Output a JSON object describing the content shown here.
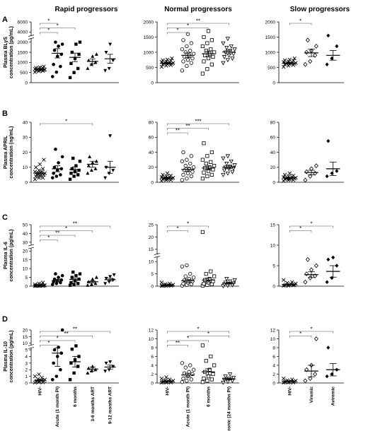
{
  "columns": [
    "Rapid progressors",
    "Normal progressors",
    "Slow progressors"
  ],
  "row_letters": [
    "A",
    "B",
    "C",
    "D"
  ],
  "ylabels": [
    [
      "Plasma BLyS",
      "concentration (pg/mL)"
    ],
    [
      "Plasma APRIL",
      "concentration (ng/mL)"
    ],
    [
      "Plasma IL-6",
      "concentration (pg/mL)"
    ],
    [
      "Plasma IL-10",
      "concentration (pg/mL)"
    ]
  ],
  "xcategories": {
    "rapid": [
      "HIV-",
      "Acute (1 month PI)",
      "6 months",
      "3-6 months ART",
      "9-12 months ART"
    ],
    "normal": [
      "HIV-",
      "Acute (1 month PI)",
      "6 months",
      "Chronic (24 months PI)"
    ],
    "slow": [
      "HIV-",
      "Viremic",
      "Aviremic"
    ]
  },
  "chart_data": [
    {
      "type": "scatter",
      "row": 0,
      "col": 0,
      "ticks": [
        0,
        500,
        1000,
        1500,
        2000,
        4000,
        6000
      ],
      "tick_labels": [
        "0",
        "500",
        "1000",
        "1500",
        "2000",
        "4000",
        "6000"
      ],
      "break": {
        "below": 2000,
        "gap": [
          2000,
          4000
        ]
      },
      "categories": [
        "HIV-",
        "Acute (1 month PI)",
        "6 months",
        "3-6 months ART",
        "9-12 months ART"
      ],
      "points": [
        [
          520,
          560,
          580,
          600,
          610,
          620,
          630,
          640,
          650,
          660,
          670,
          680,
          700,
          720,
          740,
          760,
          800
        ],
        [
          300,
          520,
          800,
          900,
          1300,
          1400,
          1600,
          1800,
          1900,
          2000
        ],
        [
          250,
          500,
          700,
          950,
          1200,
          1400,
          1500,
          1900,
          2000
        ],
        [
          700,
          900,
          1000,
          1100,
          1300,
          1400
        ],
        [
          600,
          700,
          1100,
          1500,
          1900
        ]
      ],
      "means": [
        660,
        1450,
        1250,
        1050,
        1180
      ],
      "sems": [
        25,
        230,
        210,
        120,
        220
      ],
      "sig": [
        {
          "from": 0,
          "to": 1,
          "label": "*"
        },
        {
          "from": 0,
          "to": 2,
          "label": "*"
        },
        {
          "from": 0,
          "to": 1,
          "label": "*"
        }
      ]
    },
    {
      "type": "scatter",
      "row": 0,
      "col": 1,
      "ticks": [
        0,
        500,
        1000,
        1500,
        2000
      ],
      "tick_labels": [
        "0",
        "500",
        "1000",
        "1500",
        "2000"
      ],
      "categories": [
        "HIV-",
        "Acute (1 month PI)",
        "6 months",
        "Chronic (24 months PI)"
      ],
      "points": [
        [
          520,
          560,
          580,
          600,
          610,
          620,
          630,
          640,
          650,
          660,
          670,
          680,
          700,
          720,
          740,
          760,
          800
        ],
        [
          400,
          550,
          650,
          700,
          750,
          800,
          850,
          900,
          950,
          1000,
          1050,
          1100,
          1200,
          1300,
          1400,
          1600
        ],
        [
          300,
          450,
          600,
          700,
          800,
          850,
          900,
          950,
          1000,
          1050,
          1100,
          1200,
          1300,
          1400,
          1500,
          1700
        ],
        [
          650,
          750,
          800,
          850,
          900,
          950,
          1000,
          1050,
          1100,
          1150,
          1200,
          1300,
          1450
        ]
      ],
      "means": [
        640,
        900,
        950,
        1010
      ],
      "sems": [
        25,
        80,
        90,
        60
      ],
      "sig": [
        {
          "from": 0,
          "to": 1,
          "label": "*"
        },
        {
          "from": 0,
          "to": 2,
          "label": "*"
        },
        {
          "from": 0,
          "to": 3,
          "label": "**"
        }
      ]
    },
    {
      "type": "scatter",
      "row": 0,
      "col": 2,
      "ticks": [
        0,
        500,
        1000,
        1500,
        2000
      ],
      "tick_labels": [
        "0",
        "500",
        "1000",
        "1500",
        "2000"
      ],
      "categories": [
        "HIV-",
        "Viremic",
        "Aviremic"
      ],
      "points": [
        [
          520,
          560,
          580,
          600,
          610,
          620,
          630,
          640,
          650,
          660,
          670,
          680,
          700,
          720,
          740,
          760,
          800
        ],
        [
          600,
          700,
          900,
          1000,
          1050,
          1200,
          1400
        ],
        [
          600,
          800,
          1200,
          1550
        ]
      ],
      "means": [
        640,
        980,
        900
      ],
      "sems": [
        25,
        120,
        160
      ],
      "sig": [
        {
          "from": 0,
          "to": 1,
          "label": "*"
        }
      ]
    },
    {
      "type": "scatter",
      "row": 1,
      "col": 0,
      "ticks": [
        0,
        10,
        20,
        30,
        40
      ],
      "tick_labels": [
        "0",
        "10",
        "20",
        "30",
        "40"
      ],
      "categories": [
        "HIV-",
        "Acute (1 month PI)",
        "6 months",
        "3-6 months ART",
        "9-12 months ART"
      ],
      "points": [
        [
          2,
          3,
          3,
          4,
          4,
          5,
          5,
          5,
          6,
          6,
          7,
          7,
          8,
          9,
          10,
          12,
          15
        ],
        [
          3,
          4,
          5,
          6,
          8,
          9,
          10,
          13,
          17,
          22
        ],
        [
          2,
          4,
          5,
          6,
          7,
          8,
          9,
          11,
          14,
          16
        ],
        [
          6,
          8,
          9,
          11,
          13,
          14,
          17
        ],
        [
          3,
          6,
          8,
          10,
          31
        ]
      ],
      "means": [
        6,
        9,
        8.5,
        12,
        10
      ],
      "sems": [
        0.8,
        2,
        1.8,
        2,
        4
      ],
      "sig": [
        {
          "from": 0,
          "to": 3,
          "label": "*"
        }
      ]
    },
    {
      "type": "scatter",
      "row": 1,
      "col": 1,
      "ticks": [
        0,
        20,
        40,
        60,
        80
      ],
      "tick_labels": [
        "0",
        "20",
        "40",
        "60",
        "80"
      ],
      "categories": [
        "HIV-",
        "Acute (1 month PI)",
        "6 months",
        "Chronic (24 months PI)"
      ],
      "points": [
        [
          2,
          3,
          3,
          4,
          4,
          5,
          5,
          5,
          6,
          6,
          7,
          7,
          8,
          9,
          10,
          12
        ],
        [
          3,
          5,
          8,
          10,
          12,
          14,
          16,
          18,
          20,
          22,
          25,
          28,
          30,
          35,
          40
        ],
        [
          5,
          8,
          10,
          13,
          15,
          17,
          19,
          20,
          22,
          25,
          27,
          30,
          35,
          40,
          52
        ],
        [
          10,
          12,
          14,
          16,
          18,
          19,
          20,
          21,
          23,
          25,
          28,
          32,
          35
        ]
      ],
      "means": [
        6,
        17,
        19,
        20
      ],
      "sems": [
        0.8,
        2.5,
        2.5,
        1.8
      ],
      "sig": [
        {
          "from": 0,
          "to": 1,
          "label": "**"
        },
        {
          "from": 0,
          "to": 2,
          "label": "**"
        },
        {
          "from": 0,
          "to": 3,
          "label": "***"
        }
      ]
    },
    {
      "type": "scatter",
      "row": 1,
      "col": 2,
      "ticks": [
        0,
        20,
        40,
        60,
        80
      ],
      "tick_labels": [
        "0",
        "20",
        "40",
        "60",
        "80"
      ],
      "categories": [
        "HIV-",
        "Viremic",
        "Aviremic"
      ],
      "points": [
        [
          2,
          3,
          3,
          4,
          4,
          5,
          5,
          5,
          6,
          6,
          7,
          7,
          8,
          9,
          10,
          12
        ],
        [
          3,
          8,
          12,
          14,
          18,
          22
        ],
        [
          8,
          12,
          15,
          55
        ]
      ],
      "means": [
        6,
        13,
        18
      ],
      "sems": [
        0.8,
        3,
        9
      ],
      "sig": []
    },
    {
      "type": "scatter",
      "row": 2,
      "col": 0,
      "ticks": [
        0,
        5,
        10,
        15,
        20,
        30,
        40,
        50
      ],
      "tick_labels": [
        "0",
        "5",
        "10",
        "15",
        "20",
        "30",
        "40",
        "50"
      ],
      "break": {
        "below": 20,
        "gap": [
          20,
          30
        ]
      },
      "categories": [
        "HIV-",
        "Acute (1 month PI)",
        "6 months",
        "3-6 months ART",
        "9-12 months ART"
      ],
      "points": [
        [
          0.1,
          0.1,
          0.2,
          0.2,
          0.2,
          0.3,
          0.3,
          0.4,
          0.5,
          0.6,
          0.8,
          1.0,
          1.5,
          2.0
        ],
        [
          1.0,
          1.5,
          2.0,
          2.5,
          3.0,
          3.5,
          4.0,
          5.0,
          6.0,
          7.0
        ],
        [
          0.5,
          1.0,
          1.5,
          2.0,
          3.0,
          4.0,
          5.0,
          6.0,
          7.0,
          8.0
        ],
        [
          0.5,
          1.0,
          1.5,
          2.5,
          4.0,
          5.0
        ],
        [
          1.5,
          2.5,
          3.5,
          4.5,
          5.5,
          6.5
        ]
      ],
      "means": [
        0.4,
        3.2,
        3.8,
        2.5,
        3.7
      ],
      "sems": [
        0.1,
        0.7,
        0.8,
        0.6,
        0.8
      ],
      "sig": [
        {
          "from": 0,
          "to": 1,
          "label": "*"
        },
        {
          "from": 0,
          "to": 2,
          "label": "**"
        },
        {
          "from": 0,
          "to": 3,
          "label": "*"
        },
        {
          "from": 0,
          "to": 4,
          "label": "**"
        }
      ]
    },
    {
      "type": "scatter",
      "row": 2,
      "col": 1,
      "ticks": [
        0,
        5,
        10,
        15,
        20,
        25
      ],
      "tick_labels": [
        "0",
        "5",
        "10",
        "15",
        "20",
        "25"
      ],
      "break": {
        "below": 10,
        "gap": [
          10,
          20
        ]
      },
      "categories": [
        "HIV-",
        "Acute (1 month PI)",
        "6 months",
        "Chronic (24 months PI)"
      ],
      "points": [
        [
          0.1,
          0.1,
          0.2,
          0.2,
          0.3,
          0.3,
          0.4,
          0.5,
          0.6,
          0.8,
          1.0,
          1.5
        ],
        [
          0.2,
          0.5,
          0.8,
          1.0,
          1.5,
          2.0,
          2.5,
          3.0,
          3.5,
          4.0,
          5.0,
          8.0,
          8.5
        ],
        [
          0.2,
          0.5,
          0.8,
          1.0,
          1.5,
          2.0,
          2.5,
          3.0,
          4.0,
          5.0,
          6.0,
          22
        ],
        [
          0.1,
          0.3,
          0.5,
          0.8,
          1.0,
          1.2,
          1.5,
          2.0,
          2.5,
          3.0
        ]
      ],
      "means": [
        0.4,
        2.2,
        2.5,
        1.2
      ],
      "sems": [
        0.1,
        0.6,
        0.8,
        0.3
      ],
      "sig": [
        {
          "from": 0,
          "to": 1,
          "label": "*"
        },
        {
          "from": 0,
          "to": 2,
          "label": "*"
        }
      ]
    },
    {
      "type": "scatter",
      "row": 2,
      "col": 2,
      "ticks": [
        0,
        5,
        10,
        15
      ],
      "tick_labels": [
        "0",
        "5",
        "10",
        "15"
      ],
      "categories": [
        "HIV-",
        "Viremic",
        "Aviremic"
      ],
      "points": [
        [
          0.1,
          0.1,
          0.2,
          0.2,
          0.3,
          0.3,
          0.4,
          0.5,
          0.6,
          0.8,
          1.0,
          1.5
        ],
        [
          1.0,
          2.0,
          2.5,
          3.0,
          4.0,
          5.0,
          6.5
        ],
        [
          1.0,
          2.0,
          5.0,
          6.5,
          7.0
        ]
      ],
      "means": [
        0.4,
        2.8,
        3.6
      ],
      "sems": [
        0.1,
        0.7,
        1.4
      ],
      "sig": [
        {
          "from": 0,
          "to": 1,
          "label": "*"
        },
        {
          "from": 0,
          "to": 2,
          "label": "*"
        }
      ]
    },
    {
      "type": "scatter",
      "row": 3,
      "col": 0,
      "ticks": [
        0,
        1,
        2,
        3,
        4,
        5,
        10,
        15,
        20
      ],
      "tick_labels": [
        "0",
        "1",
        "2",
        "3",
        "4",
        "5",
        "10",
        "15",
        "20"
      ],
      "break": {
        "below": 5,
        "gap": [
          5,
          10
        ]
      },
      "categories": [
        "HIV-",
        "Acute (1 month PI)",
        "6 months",
        "3-6 months ART",
        "9-12 months ART"
      ],
      "points": [
        [
          0.05,
          0.1,
          0.1,
          0.2,
          0.2,
          0.3,
          0.3,
          0.4,
          0.5,
          0.6,
          0.8,
          1.0,
          1.3
        ],
        [
          0.5,
          1.0,
          2.0,
          3.0,
          4.0,
          4.5,
          5.0,
          7.0,
          20
        ],
        [
          0.5,
          1.5,
          2.5,
          3.0,
          3.5,
          4.0,
          5.5,
          8.0
        ],
        [
          1.5,
          1.8,
          2.0,
          2.2,
          2.5
        ],
        [
          1.8,
          2.0,
          2.5,
          3.0,
          3.2
        ]
      ],
      "means": [
        0.4,
        4.5,
        3.2,
        2.1,
        2.4
      ],
      "sems": [
        0.1,
        2.0,
        0.8,
        0.3,
        0.3
      ],
      "sig": [
        {
          "from": 0,
          "to": 1,
          "label": "*"
        },
        {
          "from": 0,
          "to": 2,
          "label": "*"
        },
        {
          "from": 0,
          "to": 3,
          "label": "**"
        },
        {
          "from": 0,
          "to": 4,
          "label": "**"
        }
      ]
    },
    {
      "type": "scatter",
      "row": 3,
      "col": 1,
      "ticks": [
        0,
        2,
        4,
        6,
        8,
        10,
        12
      ],
      "tick_labels": [
        "0",
        "2",
        "4",
        "6",
        "8",
        "10",
        "12"
      ],
      "categories": [
        "HIV-",
        "Acute (1 month PI)",
        "6 months",
        "Chronic (24 months PI)"
      ],
      "points": [
        [
          0.05,
          0.1,
          0.1,
          0.2,
          0.2,
          0.3,
          0.3,
          0.4,
          0.5,
          0.6,
          0.8,
          1.0,
          1.3
        ],
        [
          0.2,
          0.5,
          0.8,
          1.0,
          1.5,
          2.0,
          2.2,
          2.5,
          3.0,
          3.5,
          4.0,
          4.5
        ],
        [
          0.2,
          0.5,
          0.8,
          1.0,
          1.5,
          2.0,
          2.5,
          3.0,
          4.0,
          5.0,
          6.0,
          8.5
        ],
        [
          0.1,
          0.3,
          0.5,
          0.8,
          1.0,
          1.2,
          1.5,
          2.0
        ]
      ],
      "means": [
        0.4,
        1.8,
        2.5,
        0.9
      ],
      "sems": [
        0.1,
        0.4,
        0.7,
        0.2
      ],
      "sig": [
        {
          "from": 0,
          "to": 1,
          "label": "**"
        },
        {
          "from": 0,
          "to": 2,
          "label": "*"
        },
        {
          "from": 1,
          "to": 3,
          "label": "*"
        },
        {
          "from": 0,
          "to": 3,
          "label": "*"
        }
      ]
    },
    {
      "type": "scatter",
      "row": 3,
      "col": 2,
      "ticks": [
        0,
        2,
        4,
        6,
        8,
        10,
        12
      ],
      "tick_labels": [
        "0",
        "2",
        "4",
        "6",
        "8",
        "10",
        "12"
      ],
      "categories": [
        "HIV-",
        "Viremic",
        "Aviremic"
      ],
      "points": [
        [
          0.05,
          0.1,
          0.1,
          0.2,
          0.2,
          0.3,
          0.3,
          0.4,
          0.5,
          0.6,
          0.8,
          1.0
        ],
        [
          0.5,
          1.0,
          2.0,
          3.0,
          4.0,
          10
        ],
        [
          1.5,
          2.0,
          3.0,
          8.0
        ]
      ],
      "means": [
        0.4,
        2.7,
        3.0
      ],
      "sems": [
        0.1,
        1.3,
        1.4
      ],
      "sig": [
        {
          "from": 0,
          "to": 1,
          "label": "*"
        },
        {
          "from": 0,
          "to": 2,
          "label": "*"
        }
      ]
    }
  ]
}
